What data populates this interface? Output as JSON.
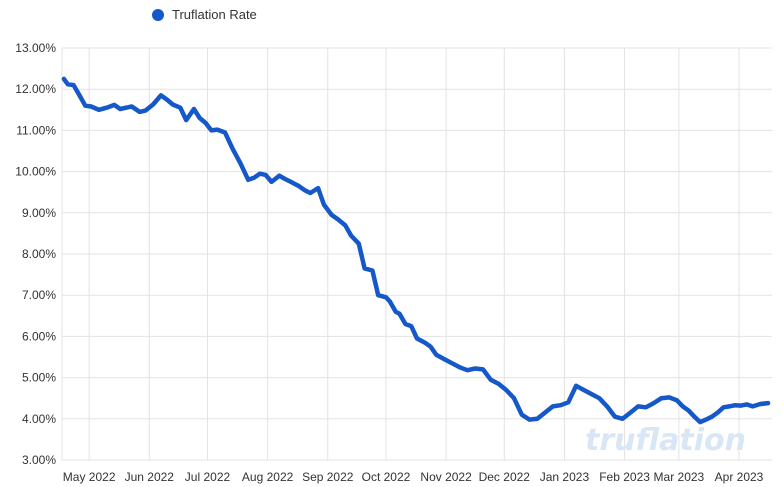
{
  "chart_data": {
    "type": "line",
    "title": "",
    "xlabel": "",
    "ylabel": "",
    "ylim": [
      3.0,
      13.0
    ],
    "y_ticks": [
      "13.00%",
      "12.00%",
      "11.00%",
      "10.00%",
      "9.00%",
      "8.00%",
      "7.00%",
      "6.00%",
      "5.00%",
      "4.00%",
      "3.00%"
    ],
    "y_tick_values": [
      13,
      12,
      11,
      10,
      9,
      8,
      7,
      6,
      5,
      4,
      3
    ],
    "x_range": [
      "2022-04-17",
      "2023-04-18"
    ],
    "x_ticks": [
      {
        "label": "May 2022",
        "date": "2022-05-01"
      },
      {
        "label": "Jun 2022",
        "date": "2022-06-01"
      },
      {
        "label": "Jul 2022",
        "date": "2022-07-01"
      },
      {
        "label": "Aug 2022",
        "date": "2022-08-01"
      },
      {
        "label": "Sep 2022",
        "date": "2022-09-01"
      },
      {
        "label": "Oct 2022",
        "date": "2022-10-01"
      },
      {
        "label": "Nov 2022",
        "date": "2022-11-01"
      },
      {
        "label": "Dec 2022",
        "date": "2022-12-01"
      },
      {
        "label": "Jan 2023",
        "date": "2023-01-01"
      },
      {
        "label": "Feb 2023",
        "date": "2023-02-01"
      },
      {
        "label": "Mar 2023",
        "date": "2023-03-01"
      },
      {
        "label": "Apr 2023",
        "date": "2023-04-01"
      }
    ],
    "grid": true,
    "legend_position": "top-left",
    "series": [
      {
        "name": "Truflation Rate",
        "color": "#1558c9",
        "x": [
          "2022-04-18",
          "2022-04-20",
          "2022-04-23",
          "2022-04-26",
          "2022-04-29",
          "2022-05-02",
          "2022-05-06",
          "2022-05-10",
          "2022-05-14",
          "2022-05-17",
          "2022-05-20",
          "2022-05-23",
          "2022-05-27",
          "2022-05-30",
          "2022-06-03",
          "2022-06-07",
          "2022-06-10",
          "2022-06-13",
          "2022-06-17",
          "2022-06-20",
          "2022-06-24",
          "2022-06-27",
          "2022-06-30",
          "2022-07-03",
          "2022-07-06",
          "2022-07-10",
          "2022-07-14",
          "2022-07-18",
          "2022-07-22",
          "2022-07-25",
          "2022-07-28",
          "2022-07-31",
          "2022-08-03",
          "2022-08-07",
          "2022-08-10",
          "2022-08-13",
          "2022-08-17",
          "2022-08-20",
          "2022-08-23",
          "2022-08-27",
          "2022-08-30",
          "2022-09-03",
          "2022-09-06",
          "2022-09-10",
          "2022-09-13",
          "2022-09-17",
          "2022-09-20",
          "2022-09-24",
          "2022-09-27",
          "2022-10-01",
          "2022-10-03",
          "2022-10-06",
          "2022-10-08",
          "2022-10-11",
          "2022-10-14",
          "2022-10-17",
          "2022-10-21",
          "2022-10-24",
          "2022-10-27",
          "2022-10-31",
          "2022-11-04",
          "2022-11-08",
          "2022-11-12",
          "2022-11-16",
          "2022-11-20",
          "2022-11-24",
          "2022-11-28",
          "2022-12-02",
          "2022-12-06",
          "2022-12-10",
          "2022-12-14",
          "2022-12-18",
          "2022-12-22",
          "2022-12-26",
          "2022-12-30",
          "2023-01-03",
          "2023-01-07",
          "2023-01-11",
          "2023-01-15",
          "2023-01-19",
          "2023-01-23",
          "2023-01-27",
          "2023-01-31",
          "2023-02-04",
          "2023-02-08",
          "2023-02-12",
          "2023-02-16",
          "2023-02-20",
          "2023-02-24",
          "2023-02-28",
          "2023-03-03",
          "2023-03-06",
          "2023-03-09",
          "2023-03-12",
          "2023-03-15",
          "2023-03-18",
          "2023-03-21",
          "2023-03-24",
          "2023-03-27",
          "2023-03-30",
          "2023-04-02",
          "2023-04-05",
          "2023-04-08",
          "2023-04-12",
          "2023-04-16"
        ],
        "values": [
          12.25,
          12.12,
          12.1,
          11.85,
          11.6,
          11.58,
          11.5,
          11.55,
          11.62,
          11.52,
          11.55,
          11.58,
          11.45,
          11.48,
          11.63,
          11.85,
          11.75,
          11.63,
          11.55,
          11.25,
          11.52,
          11.3,
          11.18,
          11.0,
          11.02,
          10.95,
          10.55,
          10.2,
          9.8,
          9.85,
          9.95,
          9.92,
          9.75,
          9.9,
          9.82,
          9.75,
          9.65,
          9.55,
          9.48,
          9.6,
          9.2,
          8.95,
          8.85,
          8.7,
          8.45,
          8.25,
          7.65,
          7.6,
          7.0,
          6.95,
          6.85,
          6.6,
          6.55,
          6.3,
          6.25,
          5.95,
          5.85,
          5.75,
          5.55,
          5.45,
          5.35,
          5.25,
          5.18,
          5.22,
          5.2,
          4.95,
          4.85,
          4.7,
          4.5,
          4.1,
          3.98,
          4.0,
          4.15,
          4.3,
          4.33,
          4.4,
          4.8,
          4.7,
          4.6,
          4.5,
          4.3,
          4.05,
          4.0,
          4.15,
          4.3,
          4.28,
          4.38,
          4.5,
          4.52,
          4.45,
          4.3,
          4.2,
          4.05,
          3.92,
          3.98,
          4.05,
          4.15,
          4.28,
          4.3,
          4.33,
          4.32,
          4.35,
          4.3,
          4.36,
          4.38
        ]
      }
    ]
  },
  "watermark": "truflation"
}
